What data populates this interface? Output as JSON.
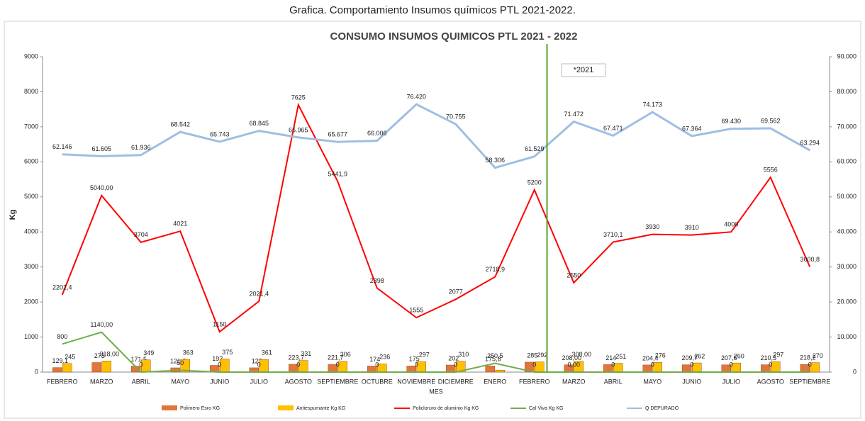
{
  "header": "Grafica. Comportamiento Insumos químicos PTL 2021-2022.",
  "chart_data": {
    "type": "combo",
    "title": "CONSUMO INSUMOS QUIMICOS PTL 2021 - 2022",
    "y_label": "Kg",
    "x_label": "MES",
    "annotation": "*2021",
    "categories": [
      "FEBRERO",
      "MARZO",
      "ABRIL",
      "MAYO",
      "JUNIO",
      "JULIO",
      "AGOSTO",
      "SEPTIEMBRE",
      "OCTUBRE",
      "NOVIEMBRE",
      "DICIEMBRE",
      "ENERO",
      "FEBRERO",
      "MARZO",
      "ABRIL",
      "MAYO",
      "JUNIO",
      "JULIO",
      "AGOSTO",
      "SEPTIEMBRE"
    ],
    "ylim": [
      0,
      9000
    ],
    "yticks": [
      0,
      1000,
      2000,
      3000,
      4000,
      5000,
      6000,
      7000,
      8000,
      9000
    ],
    "y2lim": [
      0,
      90000
    ],
    "y2ticks": [
      0,
      {
        "value": 10000,
        "label": "10.000"
      },
      {
        "value": 20000,
        "label": "20.000"
      },
      {
        "value": 30000,
        "label": "30.000"
      },
      {
        "value": 40000,
        "label": "40.000"
      },
      {
        "value": 50000,
        "label": "50.000"
      },
      {
        "value": 60000,
        "label": "60.000"
      },
      {
        "value": 70000,
        "label": "70.000"
      },
      {
        "value": 80000,
        "label": "80.000"
      },
      {
        "value": 90000,
        "label": "90.000"
      }
    ],
    "series": [
      {
        "name": "Polimero Esro KG",
        "kind": "bar",
        "color": "#e0763a",
        "values": [
          129.1,
          273,
          171.5,
          121.8,
          192,
          123,
          223.7,
          221.7,
          174,
          175,
          202,
          175.8,
          285,
          208,
          214,
          204.4,
          209.7,
          207.6,
          210.5,
          218.2
        ],
        "value_labels": [
          "129,1",
          "273",
          "171,5",
          "121,8",
          "192",
          "123",
          "223,7",
          "221,7",
          "174",
          "175",
          "202",
          "175,8",
          "285",
          "208,00",
          "214",
          "204,4",
          "209,7",
          "207,6",
          "210,5",
          "218,2"
        ]
      },
      {
        "name": "Antiespumante Kg KG",
        "kind": "bar",
        "color": "#ffc000",
        "values": [
          245,
          318,
          349,
          363,
          375,
          361,
          331,
          306,
          236,
          297,
          310,
          55,
          292,
          308,
          251,
          276,
          262,
          260,
          297,
          270
        ],
        "value_labels": [
          "245",
          "318,00",
          "349",
          "363",
          "375",
          "361",
          "331",
          "306",
          "236",
          "297",
          "310",
          null,
          "292",
          "308,00",
          "251",
          "276",
          "262",
          "260",
          "297",
          "270"
        ]
      },
      {
        "name": "Policloruro de aluminio Kg KG",
        "kind": "line",
        "color": "#ff0000",
        "values": [
          2202.4,
          5040,
          3704,
          4021,
          1150,
          2021.4,
          7625,
          5441.9,
          2398,
          1555,
          2077,
          2718.9,
          5200,
          2550,
          3710.1,
          3930,
          3910,
          4000,
          5556,
          3000.8
        ],
        "value_labels": [
          "2202,4",
          "5040,00",
          "3704",
          "4021",
          "1150",
          "2021,4",
          "7625",
          "5441,9",
          "2398",
          "1555",
          "2077",
          "2718,9",
          "5200",
          "2550",
          "3710,1",
          "3930",
          "3910",
          "4000",
          "5556",
          "3000,8"
        ]
      },
      {
        "name": "Cal Viva Kg KG",
        "kind": "line",
        "color": "#70ad47",
        "values": [
          800,
          1140,
          0,
          50,
          0,
          0,
          0,
          0,
          0,
          0,
          0,
          250.5,
          0,
          0,
          0,
          0,
          0,
          0,
          0,
          0
        ],
        "value_labels": [
          "800",
          "1140,00",
          "0",
          "50",
          "0",
          "0",
          "0",
          "0",
          "0",
          "0",
          "0",
          "250,5",
          "0",
          "0,00",
          "0",
          "0",
          "0",
          "0",
          "0",
          "0"
        ]
      },
      {
        "name": "Q DEPURADO",
        "kind": "line",
        "axis": "y2",
        "color": "#9dbfe3",
        "values": [
          62146,
          61605,
          61936,
          68542,
          65743,
          68845,
          66965,
          65677,
          66006,
          76420,
          70755,
          58306,
          61529,
          71472,
          67471,
          74173,
          67364,
          69430,
          69562,
          63294
        ],
        "value_labels": [
          "62.146",
          "61.605",
          "61.936",
          "68.542",
          "65.743",
          "68.845",
          "66.965",
          "65.677",
          "66.006",
          "76.420",
          "70.755",
          "58.306",
          "61.529",
          "71.472",
          "67.471",
          "74.173",
          "67.364",
          "69.430",
          "69.562",
          "63.294"
        ]
      }
    ]
  }
}
